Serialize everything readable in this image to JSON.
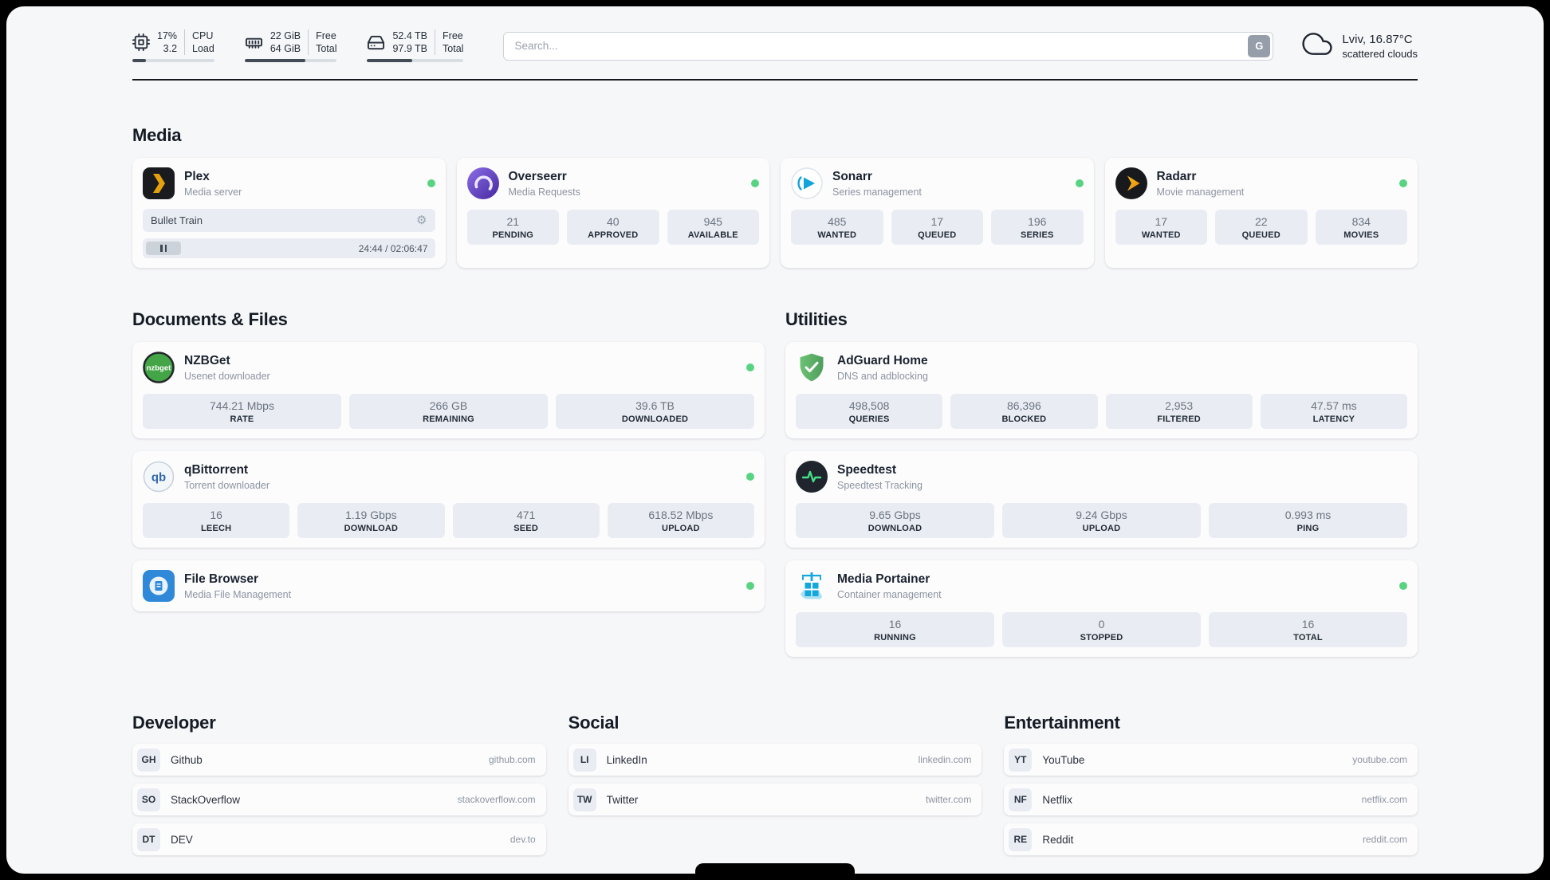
{
  "icons": {
    "gear": "⚙"
  },
  "header": {
    "cpu": {
      "value1": "17%",
      "value2": "3.2",
      "label1": "CPU",
      "label2": "Load",
      "used_percent": 17
    },
    "ram": {
      "value1": "22 GiB",
      "value2": "64 GiB",
      "label1": "Free",
      "label2": "Total",
      "used_percent": 66
    },
    "disk": {
      "value1": "52.4 TB",
      "value2": "97.9 TB",
      "label1": "Free",
      "label2": "Total",
      "used_percent": 47
    },
    "search": {
      "placeholder": "Search...",
      "button_label": "G"
    },
    "weather": {
      "location": "Lviv, 16.87°C",
      "condition": "scattered clouds"
    }
  },
  "media": {
    "title": "Media",
    "plex": {
      "name": "Plex",
      "desc": "Media server",
      "now_playing": "Bullet Train",
      "time": "24:44 / 02:06:47"
    },
    "overseerr": {
      "name": "Overseerr",
      "desc": "Media Requests",
      "stats": [
        {
          "value": "21",
          "label": "PENDING"
        },
        {
          "value": "40",
          "label": "APPROVED"
        },
        {
          "value": "945",
          "label": "AVAILABLE"
        }
      ]
    },
    "sonarr": {
      "name": "Sonarr",
      "desc": "Series management",
      "stats": [
        {
          "value": "485",
          "label": "WANTED"
        },
        {
          "value": "17",
          "label": "QUEUED"
        },
        {
          "value": "196",
          "label": "SERIES"
        }
      ]
    },
    "radarr": {
      "name": "Radarr",
      "desc": "Movie management",
      "stats": [
        {
          "value": "17",
          "label": "WANTED"
        },
        {
          "value": "22",
          "label": "QUEUED"
        },
        {
          "value": "834",
          "label": "MOVIES"
        }
      ]
    }
  },
  "documents": {
    "title": "Documents & Files",
    "nzbget": {
      "name": "NZBGet",
      "desc": "Usenet downloader",
      "stats": [
        {
          "value": "744.21 Mbps",
          "label": "RATE"
        },
        {
          "value": "266 GB",
          "label": "REMAINING"
        },
        {
          "value": "39.6 TB",
          "label": "DOWNLOADED"
        }
      ]
    },
    "qbittorrent": {
      "name": "qBittorrent",
      "desc": "Torrent downloader",
      "stats": [
        {
          "value": "16",
          "label": "LEECH"
        },
        {
          "value": "1.19 Gbps",
          "label": "DOWNLOAD"
        },
        {
          "value": "471",
          "label": "SEED"
        },
        {
          "value": "618.52 Mbps",
          "label": "UPLOAD"
        }
      ]
    },
    "filebrowser": {
      "name": "File Browser",
      "desc": "Media File Management"
    }
  },
  "utilities": {
    "title": "Utilities",
    "adguard": {
      "name": "AdGuard Home",
      "desc": "DNS and adblocking",
      "stats": [
        {
          "value": "498,508",
          "label": "QUERIES"
        },
        {
          "value": "86,396",
          "label": "BLOCKED"
        },
        {
          "value": "2,953",
          "label": "FILTERED"
        },
        {
          "value": "47.57 ms",
          "label": "LATENCY"
        }
      ]
    },
    "speedtest": {
      "name": "Speedtest",
      "desc": "Speedtest Tracking",
      "stats": [
        {
          "value": "9.65 Gbps",
          "label": "DOWNLOAD"
        },
        {
          "value": "9.24 Gbps",
          "label": "UPLOAD"
        },
        {
          "value": "0.993 ms",
          "label": "PING"
        }
      ]
    },
    "portainer": {
      "name": "Media Portainer",
      "desc": "Container management",
      "stats": [
        {
          "value": "16",
          "label": "RUNNING"
        },
        {
          "value": "0",
          "label": "STOPPED"
        },
        {
          "value": "16",
          "label": "TOTAL"
        }
      ]
    }
  },
  "bookmarks": {
    "developer": {
      "title": "Developer",
      "items": [
        {
          "abbr": "GH",
          "name": "Github",
          "url": "github.com"
        },
        {
          "abbr": "SO",
          "name": "StackOverflow",
          "url": "stackoverflow.com"
        },
        {
          "abbr": "DT",
          "name": "DEV",
          "url": "dev.to"
        }
      ]
    },
    "social": {
      "title": "Social",
      "items": [
        {
          "abbr": "LI",
          "name": "LinkedIn",
          "url": "linkedin.com"
        },
        {
          "abbr": "TW",
          "name": "Twitter",
          "url": "twitter.com"
        }
      ]
    },
    "entertainment": {
      "title": "Entertainment",
      "items": [
        {
          "abbr": "YT",
          "name": "YouTube",
          "url": "youtube.com"
        },
        {
          "abbr": "NF",
          "name": "Netflix",
          "url": "netflix.com"
        },
        {
          "abbr": "RE",
          "name": "Reddit",
          "url": "reddit.com"
        }
      ]
    }
  }
}
